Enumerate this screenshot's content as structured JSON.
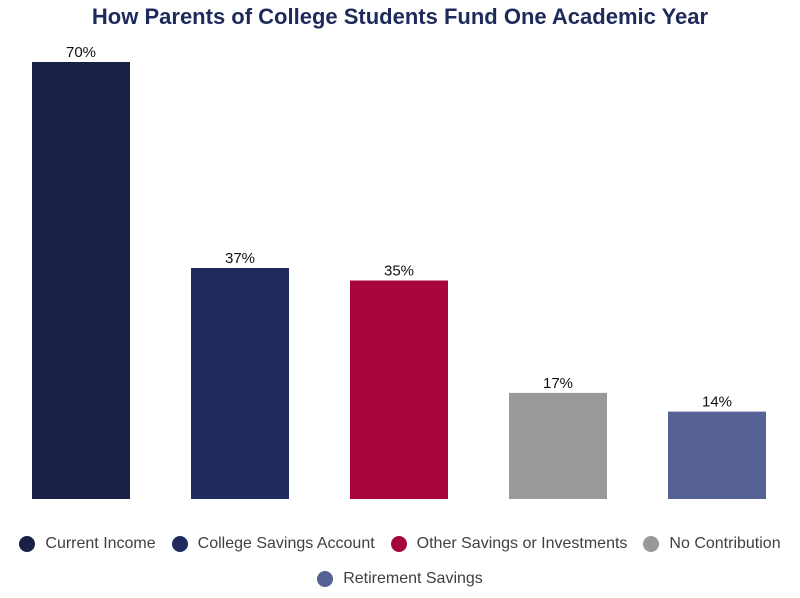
{
  "chart_data": {
    "type": "bar",
    "title": "How Parents of College Students Fund One Academic Year",
    "categories": [
      "Current Income",
      "College Savings Account",
      "Other Savings or Investments",
      "No Contribution",
      "Retirement Savings"
    ],
    "values": [
      70,
      37,
      35,
      17,
      14
    ],
    "value_labels": [
      "70%",
      "37%",
      "35%",
      "17%",
      "14%"
    ],
    "colors": [
      "#182046",
      "#212a5c",
      "#a8053e",
      "#999999",
      "#566195"
    ],
    "unit": "%",
    "ylim": [
      0,
      70
    ],
    "xlabel": "",
    "ylabel": "",
    "grid": false,
    "legend_position": "bottom"
  }
}
